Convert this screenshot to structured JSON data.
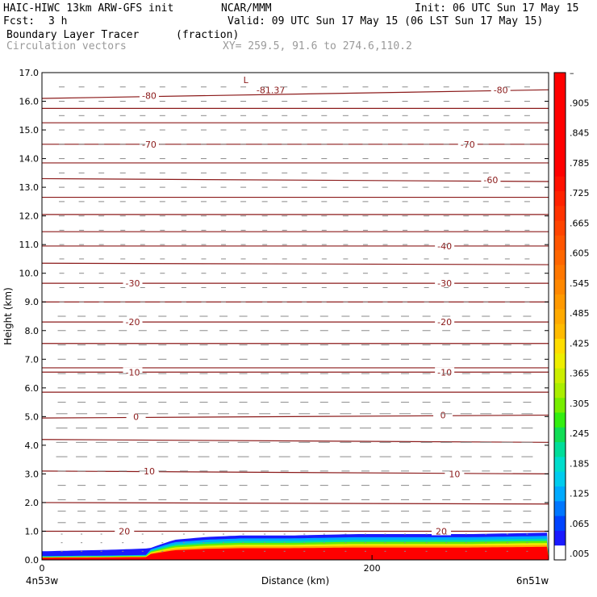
{
  "header": {
    "model": "HAIC-HIWC 13km ARW-GFS init",
    "org": "NCAR/MMM",
    "init": "Init: 06 UTC Sun 17 May 15",
    "fcst_label": "Fcst:",
    "fcst_value": "3 h",
    "valid": "Valid: 09 UTC Sun 17 May 15 (06 LST Sun 17 May 15)",
    "field_name": "Boundary Layer Tracer",
    "field_units": "(fraction)",
    "vectors": "Circulation vectors",
    "xy": "XY= 259.5, 91.6 to 274.6,110.2"
  },
  "colors": {
    "contour": "#8b1a1a",
    "vector": "#8a8a8a",
    "frame": "#000000"
  },
  "chart_data": {
    "type": "heatmap",
    "xlabel": "Distance (km)",
    "ylabel": "Height (km)",
    "xlim": [
      0,
      307
    ],
    "ylim": [
      0,
      17
    ],
    "x_ticks": [
      {
        "value": 0,
        "label": "0"
      },
      {
        "value": 200,
        "label": "200"
      }
    ],
    "x_endpoint_labels": {
      "left": "4n53w",
      "right": "6n51w"
    },
    "y_ticks": [
      "0.0",
      "1.0",
      "2.0",
      "3.0",
      "4.0",
      "5.0",
      "6.0",
      "7.0",
      "8.0",
      "9.0",
      "10.0",
      "11.0",
      "12.0",
      "13.0",
      "14.0",
      "15.0",
      "16.0",
      "17.0"
    ],
    "colorbar": {
      "labels": [
        ".005",
        ".065",
        ".125",
        ".185",
        ".245",
        ".305",
        ".365",
        ".425",
        ".485",
        ".545",
        ".605",
        ".665",
        ".725",
        ".785",
        ".845",
        ".905",
        "–"
      ],
      "colors": [
        "#ffffff",
        "#1a1aff",
        "#0044ff",
        "#0077ff",
        "#00aaff",
        "#00ccee",
        "#00ddcc",
        "#00dd99",
        "#11dd55",
        "#33ee11",
        "#77ee00",
        "#aaee00",
        "#ccee00",
        "#eeee00",
        "#ffdd00",
        "#ffbb00",
        "#ffaa00",
        "#ff9900",
        "#ff8800",
        "#ff7700",
        "#ff6600",
        "#ff5500",
        "#ff4400",
        "#ff3300",
        "#ff2200",
        "#ff1100",
        "#ff0000",
        "#ff0000",
        "#ff0000",
        "#ff0000",
        "#ff0000",
        "#ff0000",
        "#ff0000"
      ]
    },
    "contours": [
      {
        "label": "20",
        "y": [
          1.0,
          1.0
        ],
        "label_pos": [
          [
            50,
            1.0
          ],
          [
            242,
            1.0
          ]
        ]
      },
      {
        "label": "",
        "y": [
          2.0,
          1.95
        ]
      },
      {
        "label": "10",
        "y": [
          3.1,
          3.0
        ],
        "label_pos": [
          [
            65,
            3.1
          ],
          [
            250,
            3.0
          ]
        ]
      },
      {
        "label": "",
        "y": [
          4.2,
          4.1
        ]
      },
      {
        "label": "0",
        "y": [
          4.95,
          5.05
        ],
        "label_pos": [
          [
            57,
            5.0
          ],
          [
            243,
            5.05
          ]
        ]
      },
      {
        "label": "",
        "y": [
          5.85,
          5.85
        ]
      },
      {
        "label": "",
        "y": [
          6.7,
          6.7
        ]
      },
      {
        "label": "-10",
        "y": [
          6.55,
          6.55
        ],
        "label_pos": [
          [
            55,
            6.55
          ],
          [
            244,
            6.55
          ]
        ]
      },
      {
        "label": "",
        "y": [
          7.55,
          7.55
        ]
      },
      {
        "label": "-20",
        "y": [
          8.3,
          8.3
        ],
        "label_pos": [
          [
            55,
            8.3
          ],
          [
            244,
            8.3
          ]
        ]
      },
      {
        "label": "",
        "y": [
          9.0,
          9.0
        ]
      },
      {
        "label": "-30",
        "y": [
          9.65,
          9.65
        ],
        "label_pos": [
          [
            55,
            9.65
          ],
          [
            244,
            9.65
          ]
        ]
      },
      {
        "label": "",
        "y": [
          10.35,
          10.3
        ]
      },
      {
        "label": "-40",
        "y": [
          10.95,
          10.95
        ],
        "label_pos": [
          [
            244,
            10.95
          ]
        ]
      },
      {
        "label": "",
        "y": [
          11.45,
          11.45
        ]
      },
      {
        "label": "",
        "y": [
          12.05,
          12.05
        ]
      },
      {
        "label": "",
        "y": [
          12.65,
          12.65
        ]
      },
      {
        "label": "-60",
        "y": [
          13.3,
          13.2
        ],
        "label_pos": [
          [
            272,
            13.25
          ]
        ]
      },
      {
        "label": "",
        "y": [
          13.85,
          13.85
        ]
      },
      {
        "label": "-70",
        "y": [
          14.5,
          14.5
        ],
        "label_pos": [
          [
            65,
            14.5
          ],
          [
            258,
            14.5
          ]
        ]
      },
      {
        "label": "",
        "y": [
          15.25,
          15.25
        ]
      },
      {
        "label": "",
        "y": [
          15.75,
          15.75
        ]
      },
      {
        "label": "-80",
        "y": [
          16.1,
          16.4
        ],
        "label_pos": [
          [
            65,
            16.2
          ],
          [
            278,
            16.4
          ]
        ]
      }
    ],
    "annotations": [
      {
        "text": "L",
        "x": 122,
        "y": 16.75
      },
      {
        "text": "-81.37",
        "x": 130,
        "y": 16.4
      }
    ],
    "tracer_top_km": [
      [
        0,
        0.3
      ],
      [
        40,
        0.35
      ],
      [
        65,
        0.4
      ],
      [
        80,
        0.7
      ],
      [
        100,
        0.8
      ],
      [
        120,
        0.85
      ],
      [
        150,
        0.85
      ],
      [
        190,
        0.9
      ],
      [
        220,
        0.9
      ],
      [
        260,
        0.9
      ],
      [
        307,
        0.95
      ]
    ],
    "vectors": {
      "columns_km": [
        12,
        24,
        36,
        49,
        61,
        73,
        86,
        98,
        110,
        122,
        135,
        147,
        159,
        171,
        184,
        196,
        208,
        220,
        233,
        245,
        257,
        269,
        282,
        294
      ],
      "rows_km": [
        0.3,
        0.6,
        0.9,
        1.3,
        1.7,
        2.1,
        2.6,
        3.1,
        3.6,
        4.1,
        4.6,
        5.1,
        5.5,
        6.0,
        6.5,
        7.0,
        7.5,
        8.0,
        8.5,
        9.0,
        9.5,
        10.0,
        10.5,
        11.0,
        11.5,
        12.0,
        12.5,
        13.0,
        13.5,
        14.0,
        14.5,
        15.0,
        15.5,
        16.0,
        16.5
      ]
    }
  }
}
